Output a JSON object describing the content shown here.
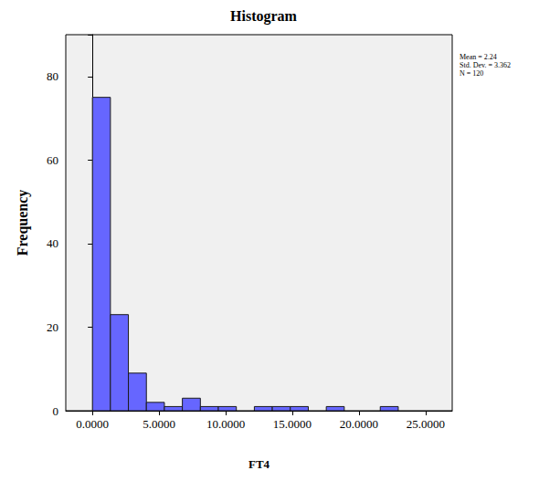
{
  "chart_data": {
    "type": "histogram",
    "title": "Histogram",
    "xlabel": "FT4",
    "ylabel": "Frequency",
    "bins": [
      0,
      1.35,
      2.7,
      4.05,
      5.4,
      6.75,
      8.1,
      9.45,
      10.8,
      12.15,
      13.5,
      14.85,
      16.2,
      17.55,
      18.9,
      20.25,
      21.6,
      22.95
    ],
    "counts": [
      75,
      23,
      9,
      2,
      1,
      3,
      1,
      1,
      0,
      1,
      1,
      1,
      0,
      1,
      0,
      0,
      1
    ],
    "color": "#6666ff",
    "xlim": [
      -2,
      27
    ],
    "xticks": [
      {
        "value": 0,
        "label": "0.0000"
      },
      {
        "value": 5,
        "label": "5.0000"
      },
      {
        "value": 10,
        "label": "10.0000"
      },
      {
        "value": 15,
        "label": "15.0000"
      },
      {
        "value": 20,
        "label": "20.0000"
      },
      {
        "value": 25,
        "label": "25.0000"
      }
    ],
    "ylim": [
      0,
      90
    ],
    "yticks": [
      0,
      20,
      40,
      60,
      80
    ],
    "grid": false,
    "annotations": [
      "Mean = 2.24",
      "Std. Dev. = 3.362",
      "N = 120"
    ]
  }
}
